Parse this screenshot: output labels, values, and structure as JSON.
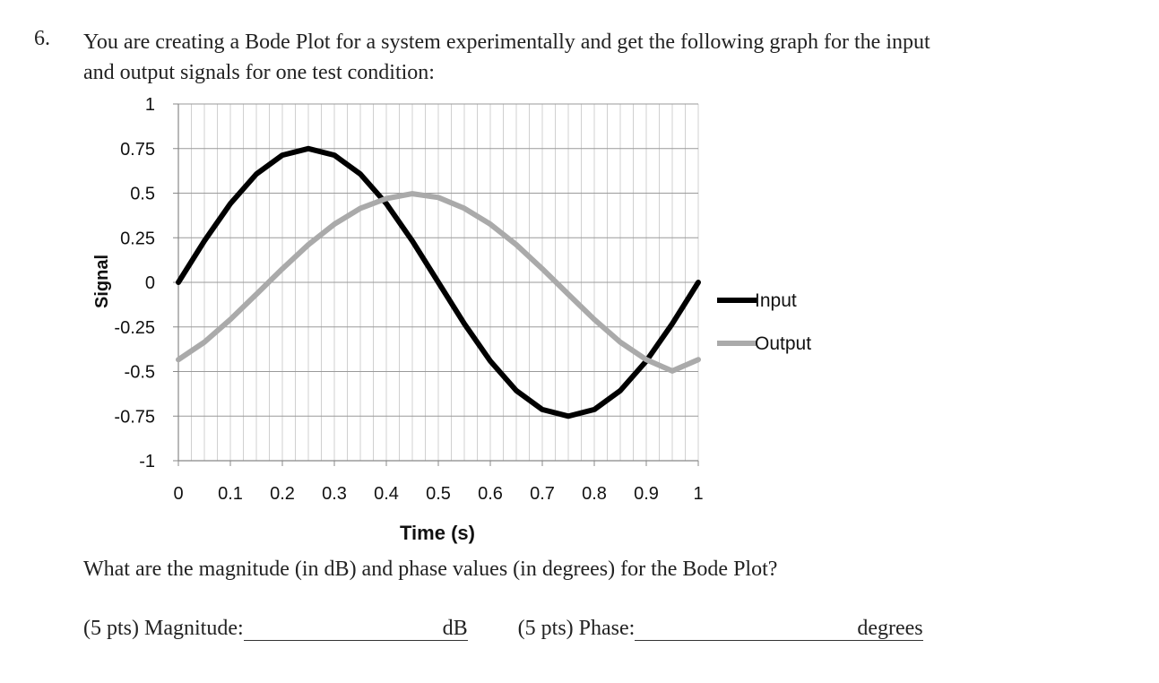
{
  "question": {
    "number": "6.",
    "line1": "You are creating a Bode Plot for a system experimentally and get the following graph for the input",
    "line2": "and output signals for one test condition:",
    "prompt": "What are the magnitude (in dB) and phase values (in degrees) for the Bode Plot?",
    "magnitude_label": "(5 pts) Magnitude:",
    "magnitude_unit": "dB",
    "phase_label": "(5 pts) Phase:",
    "phase_unit": "degrees"
  },
  "chart_data": {
    "type": "line",
    "title": "",
    "xlabel": "Time (s)",
    "ylabel": "Signal",
    "xlim": [
      0,
      1
    ],
    "ylim": [
      -1,
      1
    ],
    "xticks": [
      "0",
      "0.1",
      "0.2",
      "0.3",
      "0.4",
      "0.5",
      "0.6",
      "0.7",
      "0.8",
      "0.9",
      "1"
    ],
    "yticks": [
      "1",
      "0.75",
      "0.5",
      "0.25",
      "0",
      "-0.25",
      "-0.5",
      "-0.75",
      "-1"
    ],
    "grid": true,
    "legend": "right",
    "series": [
      {
        "name": "Input",
        "color": "#000000",
        "x": [
          0,
          0.05,
          0.1,
          0.15,
          0.2,
          0.25,
          0.3,
          0.35,
          0.4,
          0.45,
          0.5,
          0.55,
          0.6,
          0.65,
          0.7,
          0.75,
          0.8,
          0.85,
          0.9,
          0.95,
          1
        ],
        "y": [
          0,
          0.232,
          0.441,
          0.607,
          0.713,
          0.75,
          0.713,
          0.607,
          0.441,
          0.232,
          0,
          -0.232,
          -0.441,
          -0.607,
          -0.713,
          -0.75,
          -0.713,
          -0.607,
          -0.441,
          -0.232,
          0
        ]
      },
      {
        "name": "Output",
        "color": "#aaaaaa",
        "x": [
          0,
          0.05,
          0.1,
          0.15,
          0.2,
          0.25,
          0.3,
          0.35,
          0.4,
          0.45,
          0.5,
          0.55,
          0.6,
          0.65,
          0.7,
          0.75,
          0.8,
          0.85,
          0.9,
          0.95,
          1
        ],
        "y": [
          -0.433,
          -0.335,
          -0.208,
          -0.067,
          0.076,
          0.211,
          0.326,
          0.415,
          0.47,
          0.497,
          0.476,
          0.415,
          0.326,
          0.211,
          0.076,
          -0.067,
          -0.208,
          -0.335,
          -0.433,
          -0.497,
          -0.433
        ]
      }
    ]
  }
}
